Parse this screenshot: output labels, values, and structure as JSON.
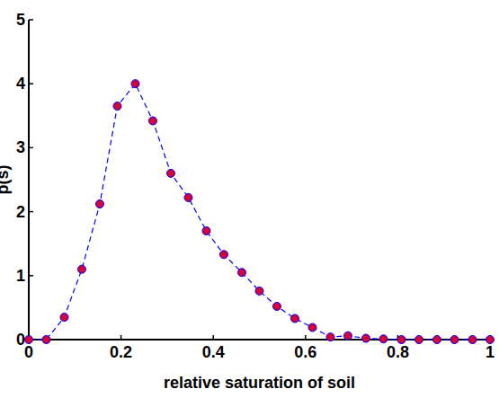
{
  "chart_data": {
    "type": "line",
    "x_label": "relative saturation of soil",
    "y_label": "p(s)",
    "x": [
      0,
      0.038,
      0.077,
      0.115,
      0.154,
      0.192,
      0.231,
      0.269,
      0.308,
      0.346,
      0.385,
      0.423,
      0.462,
      0.5,
      0.538,
      0.577,
      0.615,
      0.654,
      0.692,
      0.731,
      0.769,
      0.808,
      0.846,
      0.885,
      0.923,
      0.962,
      1
    ],
    "series": [
      {
        "name": "p(s)",
        "color": "#0000ff",
        "marker": "circle",
        "line_style": "dashed",
        "values": [
          0,
          0,
          0.35,
          1.1,
          2.12,
          3.65,
          4.0,
          3.42,
          2.6,
          2.22,
          1.7,
          1.33,
          1.05,
          0.76,
          0.52,
          0.33,
          0.19,
          0.04,
          0.06,
          0.02,
          0.01,
          0,
          0,
          0,
          0,
          0,
          0
        ]
      }
    ],
    "xlim": [
      0,
      1
    ],
    "xticks": [
      0,
      0.2,
      0.4,
      0.6,
      0.8,
      1
    ],
    "ylim": [
      0,
      5
    ],
    "yticks": [
      0,
      1,
      2,
      3,
      4,
      5
    ],
    "grid": false
  }
}
